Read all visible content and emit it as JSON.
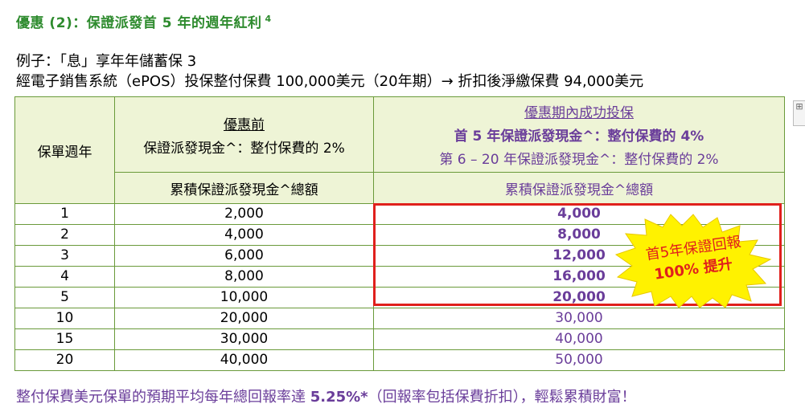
{
  "title": {
    "text": "優惠 (2)：保證派發首 5 年的週年紅利",
    "sup": "4"
  },
  "example": {
    "line1": "例子：「息」享年年儲蓄保 3",
    "line2": "經電子銷售系統（ePOS）投保整付保費 100,000美元（20年期）→ 折扣後淨繳保費 94,000美元"
  },
  "table": {
    "col1_header": "保單週年",
    "before": {
      "heading": "優惠前",
      "desc": "保證派發現金^：整付保費的 2%",
      "subheader": "累積保證派發現金^總額"
    },
    "during": {
      "heading": "優惠期內成功投保",
      "line1": "首 5 年保證派發現金^：整付保費的 4%",
      "line2": "第 6 – 20 年保證派發現金^：整付保費的 2%",
      "subheader": "累積保證派發現金^總額"
    },
    "rows": [
      {
        "year": "1",
        "before": "2,000",
        "after": "4,000"
      },
      {
        "year": "2",
        "before": "4,000",
        "after": "8,000"
      },
      {
        "year": "3",
        "before": "6,000",
        "after": "12,000"
      },
      {
        "year": "4",
        "before": "8,000",
        "after": "16,000"
      },
      {
        "year": "5",
        "before": "10,000",
        "after": "20,000"
      },
      {
        "year": "10",
        "before": "20,000",
        "after": "30,000"
      },
      {
        "year": "15",
        "before": "30,000",
        "after": "40,000"
      },
      {
        "year": "20",
        "before": "40,000",
        "after": "50,000"
      }
    ]
  },
  "burst": {
    "line1": "首5年保證回報",
    "line2": "100% 提升"
  },
  "footer": {
    "pre": "整付保費美元保單的預期平均每年總回報率達 ",
    "rate": "5.25%*",
    "post": "（回報率包括保費折扣），輕鬆累積財富！"
  },
  "colors": {
    "title": "#2e8b2e",
    "purple": "#6a3d9a",
    "highlight_red": "#e0201c",
    "header_bg": "#eef4d6",
    "burst_fill": "#fff200"
  }
}
